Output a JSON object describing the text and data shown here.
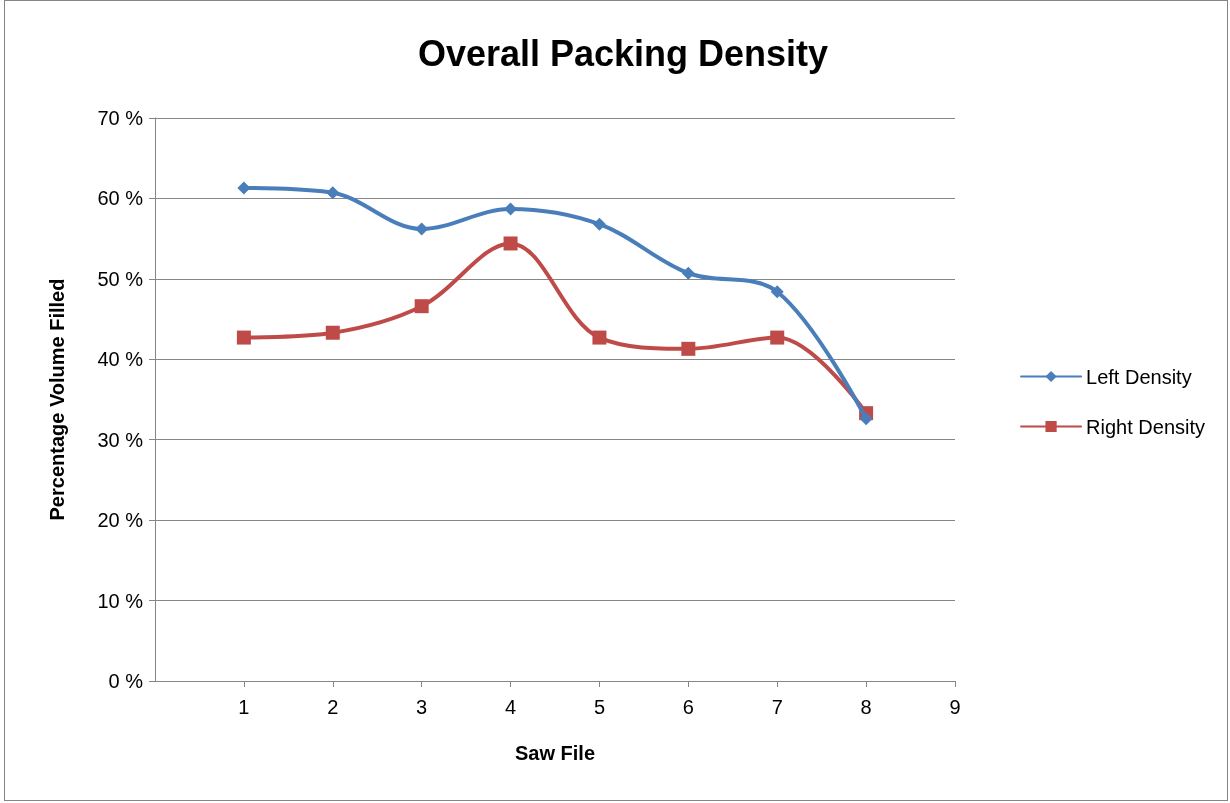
{
  "chart_data": {
    "type": "line",
    "title": "Overall Packing Density",
    "xlabel": "Saw File",
    "ylabel": "Percentage Volume Filled",
    "x": [
      1,
      2,
      3,
      4,
      5,
      6,
      7,
      8
    ],
    "series": [
      {
        "name": "Left Density",
        "color": "#4a7ebb",
        "marker": "diamond",
        "values": [
          61.3,
          60.7,
          56.2,
          58.7,
          56.8,
          50.7,
          48.4,
          32.6
        ]
      },
      {
        "name": "Right Density",
        "color": "#be4b48",
        "marker": "square",
        "values": [
          42.7,
          43.3,
          46.6,
          54.4,
          42.7,
          41.3,
          42.7,
          33.3
        ]
      }
    ],
    "xlim": [
      0,
      9
    ],
    "xticks": [
      1,
      2,
      3,
      4,
      5,
      6,
      7,
      8,
      9
    ],
    "ylim": [
      0,
      70
    ],
    "yticks": [
      {
        "value": 0,
        "label": "0 %"
      },
      {
        "value": 10,
        "label": "10 %"
      },
      {
        "value": 20,
        "label": "20 %"
      },
      {
        "value": 30,
        "label": "30 %"
      },
      {
        "value": 40,
        "label": "40 %"
      },
      {
        "value": 50,
        "label": "50 %"
      },
      {
        "value": 60,
        "label": "60 %"
      },
      {
        "value": 70,
        "label": "70 %"
      }
    ],
    "grid": "y",
    "legend": "right",
    "line_style": "solid"
  }
}
